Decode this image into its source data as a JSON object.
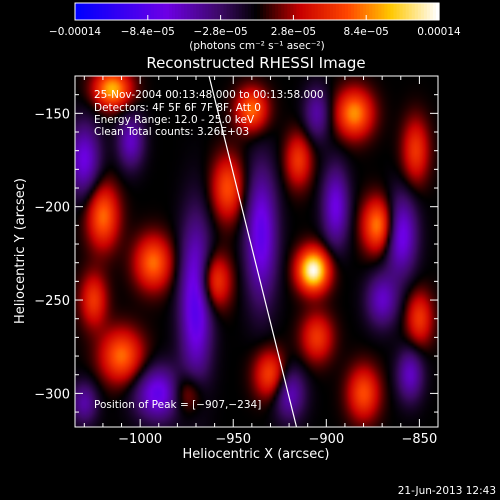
{
  "chart_data": {
    "type": "heatmap",
    "title": "Reconstructed RHESSI Image",
    "xlabel": "Heliocentric X (arcsec)",
    "ylabel": "Heliocentric Y (arcsec)",
    "xlim": [
      -1035,
      -840
    ],
    "ylim": [
      -318,
      -130
    ],
    "x_ticks": [
      -1000,
      -950,
      -900,
      -850
    ],
    "y_ticks": [
      -300,
      -250,
      -200,
      -150
    ],
    "x_tick_labels": [
      "−1000",
      "−950",
      "−900",
      "−850"
    ],
    "y_tick_labels": [
      "−300",
      "−250",
      "−200",
      "−150"
    ],
    "colorbar": {
      "min": -0.00014,
      "max": 0.00014,
      "ticks": [
        -0.00014,
        -8.4e-05,
        -2.8e-05,
        2.8e-05,
        8.4e-05,
        0.00014
      ],
      "tick_labels": [
        "−0.00014",
        "−8.4e−05",
        "−2.8e−05",
        "2.8e−05",
        "8.4e−05",
        "0.00014"
      ],
      "label": "(photons cm⁻² s⁻¹ asec⁻²)"
    },
    "annotations": [
      "25-Nov-2004 00:13:48.000 to 00:13:58.000",
      "Detectors: 4F 5F 6F 7F 8F, Att 0",
      "Energy Range: 12.0 - 25.0 keV",
      "Clean     Total counts: 3.26E+03",
      "Position of Peak = [−907,−234]"
    ],
    "peak": {
      "x": -907,
      "y": -234
    },
    "limb_line": [
      {
        "x": -963,
        "y": -130
      },
      {
        "x": -916,
        "y": -318
      }
    ],
    "sources": [
      {
        "x": -907,
        "y": -234,
        "v": 0.00014,
        "sx": 6,
        "sy": 8
      },
      {
        "x": -885,
        "y": -150,
        "v": 9e-05,
        "sx": 7,
        "sy": 9
      },
      {
        "x": -872,
        "y": -210,
        "v": 9e-05,
        "sx": 6,
        "sy": 10
      },
      {
        "x": -1015,
        "y": -137,
        "v": 0.0001,
        "sx": 7,
        "sy": 7
      },
      {
        "x": -940,
        "y": -148,
        "v": 8e-05,
        "sx": 6,
        "sy": 8
      },
      {
        "x": -993,
        "y": -230,
        "v": 8e-05,
        "sx": 7,
        "sy": 10
      },
      {
        "x": -1020,
        "y": -205,
        "v": 8e-05,
        "sx": 6,
        "sy": 12
      },
      {
        "x": -953,
        "y": -190,
        "v": 7e-05,
        "sx": 6,
        "sy": 12
      },
      {
        "x": -960,
        "y": -240,
        "v": 7e-05,
        "sx": 6,
        "sy": 10
      },
      {
        "x": -930,
        "y": -290,
        "v": 7e-05,
        "sx": 6,
        "sy": 9
      },
      {
        "x": -880,
        "y": -300,
        "v": 7e-05,
        "sx": 6,
        "sy": 10
      },
      {
        "x": -1010,
        "y": -280,
        "v": 8e-05,
        "sx": 8,
        "sy": 10
      },
      {
        "x": -852,
        "y": -170,
        "v": 6e-05,
        "sx": 5,
        "sy": 12
      },
      {
        "x": -850,
        "y": -260,
        "v": 6e-05,
        "sx": 5,
        "sy": 10
      },
      {
        "x": -915,
        "y": -175,
        "v": 6e-05,
        "sx": 5,
        "sy": 10
      },
      {
        "x": -975,
        "y": -300,
        "v": 5e-05,
        "sx": 6,
        "sy": 8
      },
      {
        "x": -905,
        "y": -270,
        "v": 6e-05,
        "sx": 6,
        "sy": 9
      },
      {
        "x": -1025,
        "y": -250,
        "v": 6e-05,
        "sx": 5,
        "sy": 10
      },
      {
        "x": -1030,
        "y": -175,
        "v": -7e-05,
        "sx": 6,
        "sy": 14
      },
      {
        "x": -1005,
        "y": -165,
        "v": -6e-05,
        "sx": 5,
        "sy": 10
      },
      {
        "x": -970,
        "y": -250,
        "v": -9e-05,
        "sx": 6,
        "sy": 30
      },
      {
        "x": -990,
        "y": -300,
        "v": -8e-05,
        "sx": 9,
        "sy": 10
      },
      {
        "x": -935,
        "y": -215,
        "v": -8e-05,
        "sx": 6,
        "sy": 25
      },
      {
        "x": -895,
        "y": -200,
        "v": -7e-05,
        "sx": 5,
        "sy": 15
      },
      {
        "x": -860,
        "y": -215,
        "v": -8e-05,
        "sx": 6,
        "sy": 15
      },
      {
        "x": -870,
        "y": -250,
        "v": -6e-05,
        "sx": 6,
        "sy": 10
      },
      {
        "x": -855,
        "y": -290,
        "v": -6e-05,
        "sx": 5,
        "sy": 10
      },
      {
        "x": -905,
        "y": -150,
        "v": -5e-05,
        "sx": 5,
        "sy": 10
      },
      {
        "x": -920,
        "y": -300,
        "v": -6e-05,
        "sx": 6,
        "sy": 10
      },
      {
        "x": -1030,
        "y": -305,
        "v": -5e-05,
        "sx": 5,
        "sy": 8
      }
    ],
    "grid": false
  },
  "footer": {
    "timestamp": "21-Jun-2013 12:43"
  },
  "colors": {
    "background": "#000000",
    "foreground": "#ffffff",
    "colormap_neg_low": "#0000ff",
    "colormap_zero": "#000000",
    "colormap_pos_mid": "#ff0000",
    "colormap_pos_high": "#ffffff"
  }
}
